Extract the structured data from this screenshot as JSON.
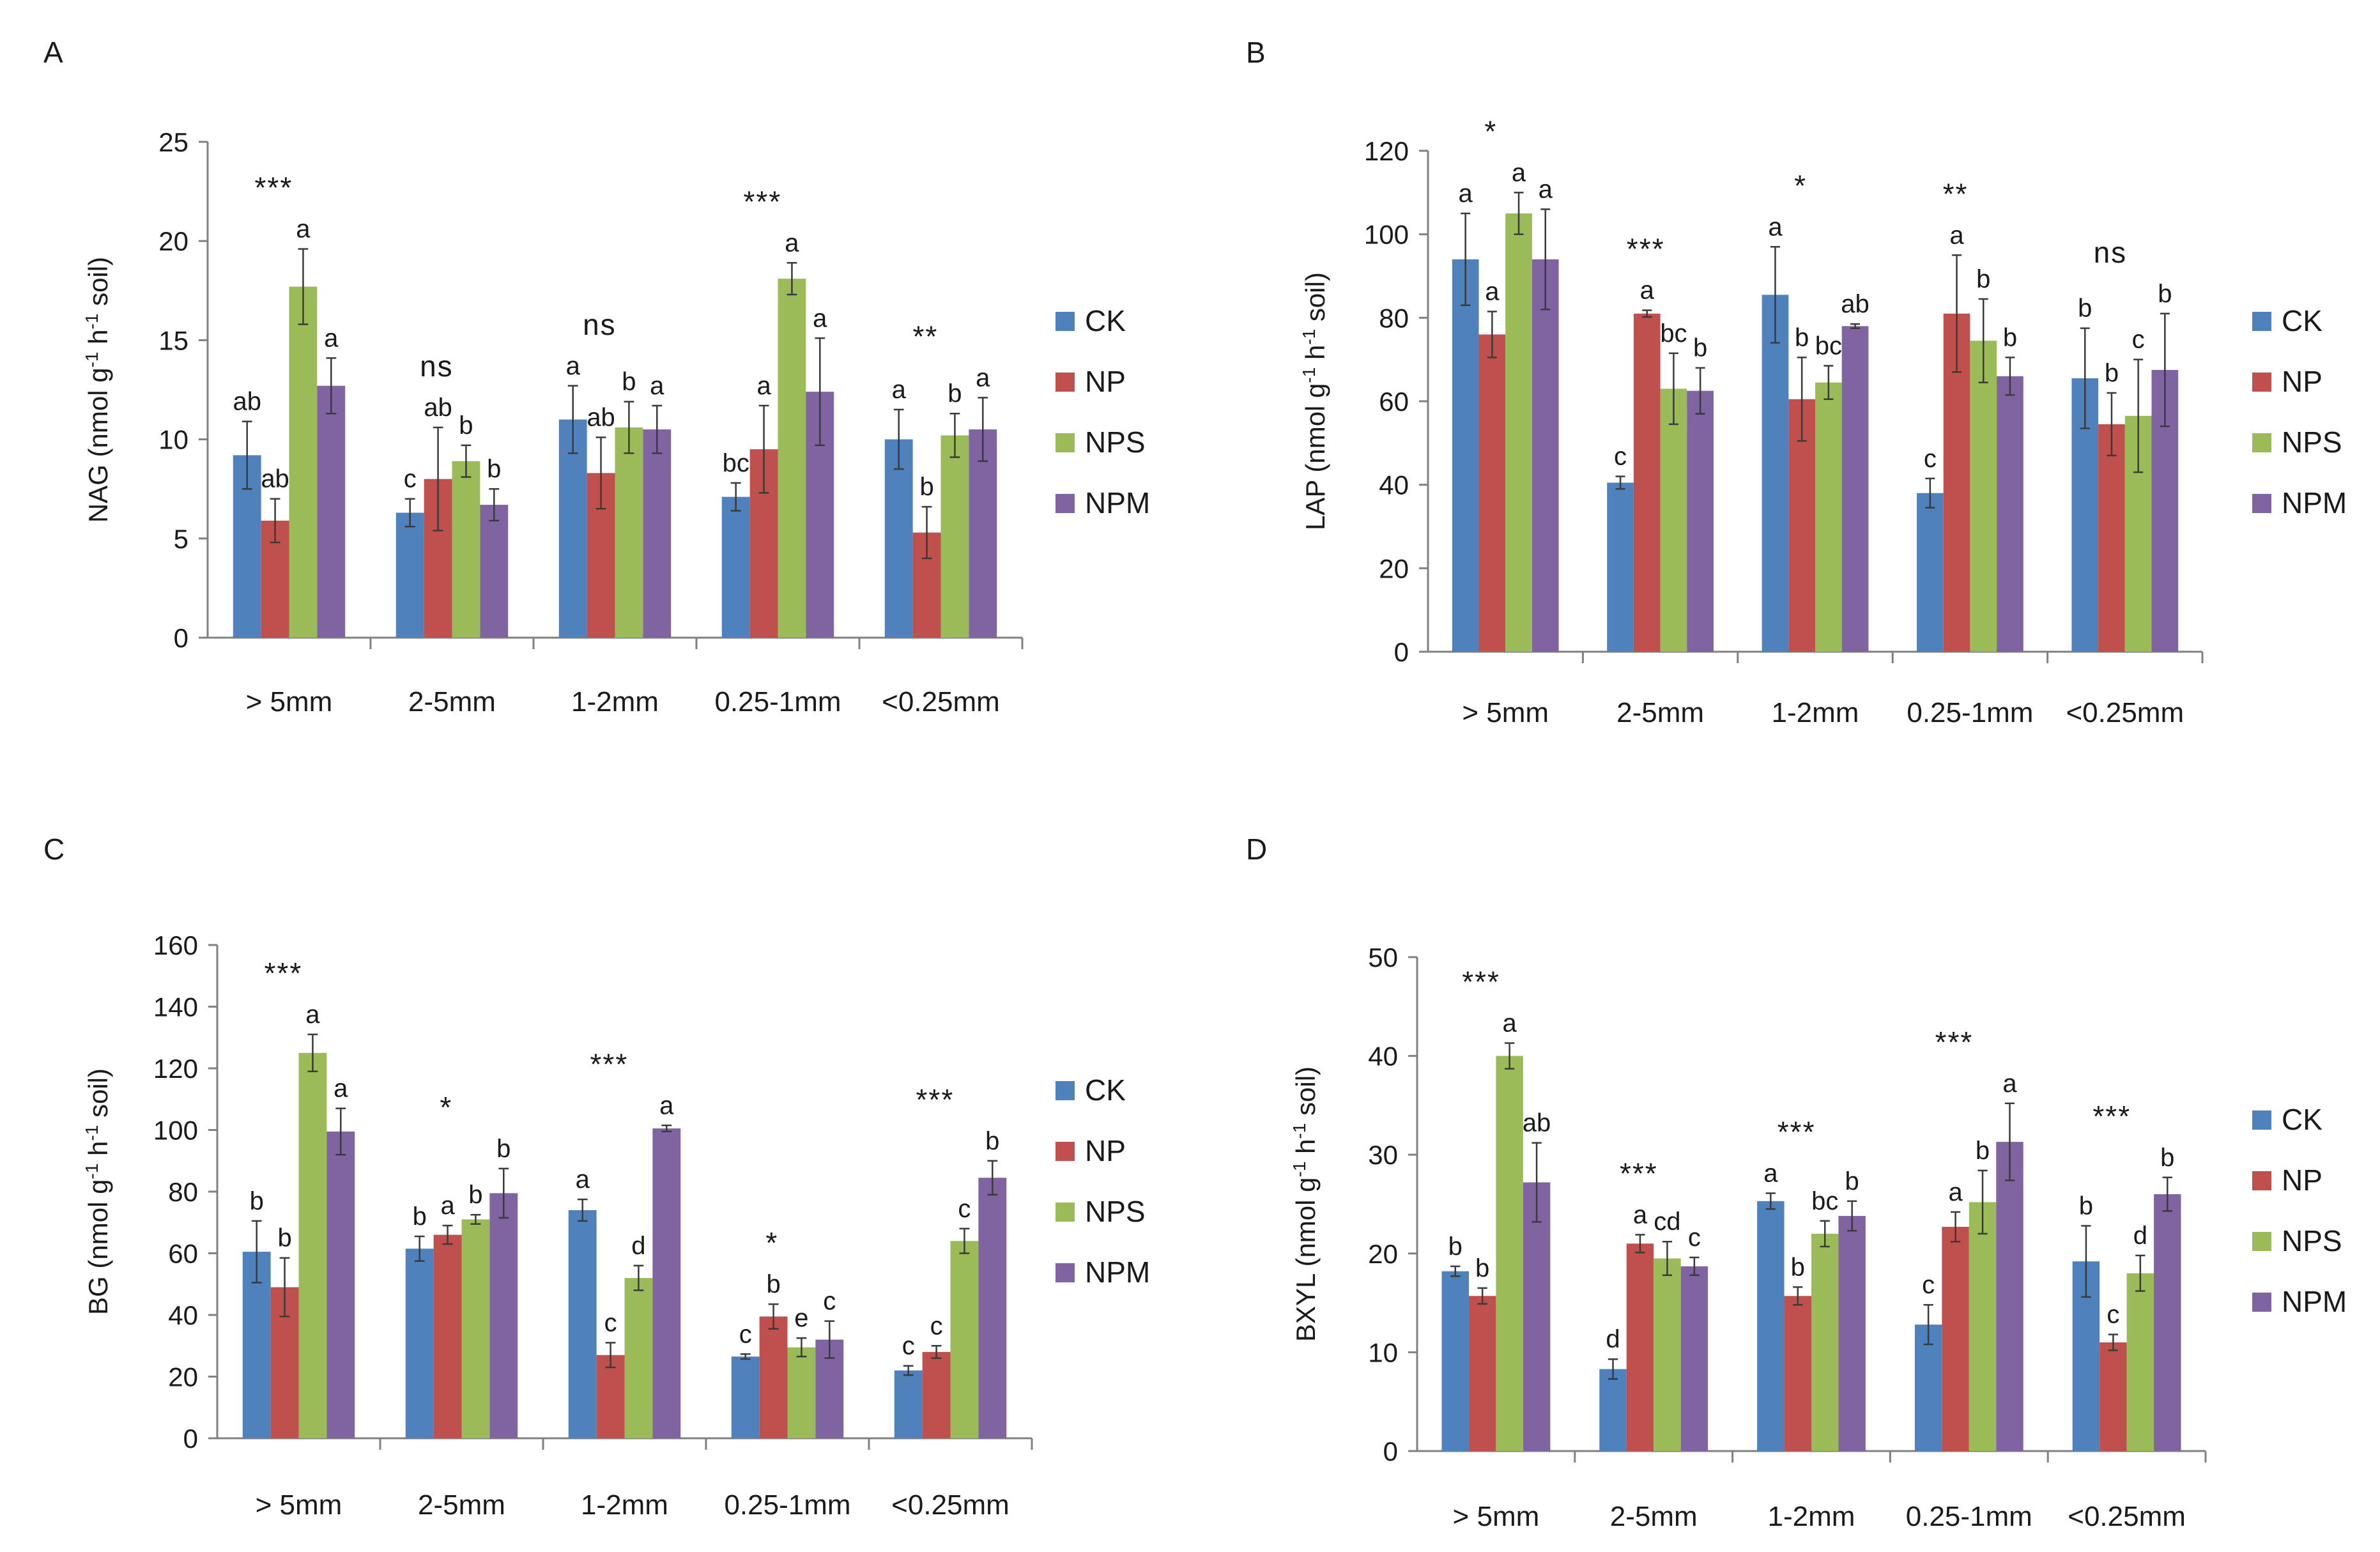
{
  "figure": {
    "series_colors": {
      "CK": "#4F81BD",
      "NP": "#C0504D",
      "NPS": "#9BBB59",
      "NPM": "#8064A2"
    },
    "axis_color": "#808080"
  },
  "chart_data": [
    {
      "id": "A",
      "type": "bar",
      "panel_label": "A",
      "ylabel": "NAG (nmol g-1 h-1 soil)",
      "ylabel_main": "NAG (nmol g",
      "ylabel_sup1": "-1",
      "ylabel_mid": " h",
      "ylabel_sup2": "-1",
      "ylabel_end": " soil)",
      "ylim": [
        0,
        25
      ],
      "yticks": [
        0,
        5,
        10,
        15,
        20,
        25
      ],
      "categories": [
        "> 5mm",
        "2-5mm",
        "1-2mm",
        "0.25-1mm",
        "<0.25mm"
      ],
      "significance": [
        "***",
        "ns",
        "ns",
        "***",
        "**"
      ],
      "series": [
        {
          "name": "CK",
          "values": [
            9.2,
            6.3,
            11.0,
            7.1,
            10.0
          ],
          "errors": [
            1.7,
            0.7,
            1.7,
            0.7,
            1.5
          ],
          "letters": [
            "ab",
            "c",
            "a",
            "bc",
            "a"
          ]
        },
        {
          "name": "NP",
          "values": [
            5.9,
            8.0,
            8.3,
            9.5,
            5.3
          ],
          "errors": [
            1.1,
            2.6,
            1.8,
            2.2,
            1.3
          ],
          "letters": [
            "ab",
            "ab",
            "ab",
            "a",
            "b"
          ]
        },
        {
          "name": "NPS",
          "values": [
            17.7,
            8.9,
            10.6,
            18.1,
            10.2
          ],
          "errors": [
            1.9,
            0.8,
            1.3,
            0.8,
            1.1
          ],
          "letters": [
            "a",
            "b",
            "b",
            "a",
            "b"
          ]
        },
        {
          "name": "NPM",
          "values": [
            12.7,
            6.7,
            10.5,
            12.4,
            10.5
          ],
          "errors": [
            1.4,
            0.8,
            1.2,
            2.7,
            1.6
          ],
          "letters": [
            "a",
            "b",
            "a",
            "a",
            "a"
          ]
        }
      ]
    },
    {
      "id": "B",
      "type": "bar",
      "panel_label": "B",
      "ylabel": "LAP (nmol g-1 h-1 soil)",
      "ylabel_main": "LAP (nmol g",
      "ylabel_sup1": "-1",
      "ylabel_mid": " h",
      "ylabel_sup2": "-1",
      "ylabel_end": " soil)",
      "ylim": [
        0,
        120
      ],
      "yticks": [
        0,
        20,
        40,
        60,
        80,
        100,
        120
      ],
      "categories": [
        "> 5mm",
        "2-5mm",
        "1-2mm",
        "0.25-1mm",
        "<0.25mm"
      ],
      "significance": [
        "*",
        "***",
        "*",
        "**",
        "ns"
      ],
      "series": [
        {
          "name": "CK",
          "values": [
            94,
            40.5,
            85.5,
            38,
            65.5
          ],
          "errors": [
            11,
            1.5,
            11.5,
            3.5,
            12
          ],
          "letters": [
            "a",
            "c",
            "a",
            "c",
            "b"
          ]
        },
        {
          "name": "NP",
          "values": [
            76,
            81,
            60.5,
            81,
            54.5
          ],
          "errors": [
            5.5,
            0.8,
            10,
            14,
            7.5
          ],
          "letters": [
            "a",
            "a",
            "b",
            "a",
            "b"
          ]
        },
        {
          "name": "NPS",
          "values": [
            105,
            63,
            64.5,
            74.5,
            56.5
          ],
          "errors": [
            5,
            8.5,
            4,
            10,
            13.5
          ],
          "letters": [
            "a",
            "bc",
            "bc",
            "b",
            "c"
          ]
        },
        {
          "name": "NPM",
          "values": [
            94,
            62.5,
            78,
            66,
            67.5
          ],
          "errors": [
            12,
            5.5,
            0.5,
            4.5,
            13.5
          ],
          "letters": [
            "a",
            "b",
            "ab",
            "b",
            "b"
          ]
        }
      ]
    },
    {
      "id": "C",
      "type": "bar",
      "panel_label": "C",
      "ylabel": "BG (nmol g-1 h-1 soil)",
      "ylabel_main": "BG (nmol g",
      "ylabel_sup1": "-1",
      "ylabel_mid": " h",
      "ylabel_sup2": "-1",
      "ylabel_end": " soil)",
      "ylim": [
        0,
        160
      ],
      "yticks": [
        0,
        20,
        40,
        60,
        80,
        100,
        120,
        140,
        160
      ],
      "categories": [
        "> 5mm",
        "2-5mm",
        "1-2mm",
        "0.25-1mm",
        "<0.25mm"
      ],
      "significance": [
        "***",
        "*",
        "***",
        "*",
        "***"
      ],
      "series": [
        {
          "name": "CK",
          "values": [
            60.5,
            61.5,
            74,
            26.5,
            22
          ],
          "errors": [
            10,
            4,
            3.5,
            0.8,
            1.5
          ],
          "letters": [
            "b",
            "b",
            "a",
            "c",
            "c"
          ]
        },
        {
          "name": "NP",
          "values": [
            49,
            66,
            27,
            39.5,
            28
          ],
          "errors": [
            9.5,
            3,
            4,
            4,
            2
          ],
          "letters": [
            "b",
            "a",
            "c",
            "b",
            "c"
          ]
        },
        {
          "name": "NPS",
          "values": [
            125,
            71,
            52,
            29.5,
            64
          ],
          "errors": [
            6,
            1.5,
            4,
            3,
            4
          ],
          "letters": [
            "a",
            "b",
            "d",
            "e",
            "c"
          ]
        },
        {
          "name": "NPM",
          "values": [
            99.5,
            79.5,
            100.5,
            32,
            84.5
          ],
          "errors": [
            7.5,
            8,
            1,
            6,
            5.5
          ],
          "letters": [
            "a",
            "b",
            "a",
            "c",
            "b"
          ]
        }
      ]
    },
    {
      "id": "D",
      "type": "bar",
      "panel_label": "D",
      "ylabel": "BXYL (nmol g-1 h-1 soil)",
      "ylabel_main": "BXYL (nmol g",
      "ylabel_sup1": "-1",
      "ylabel_mid": " h",
      "ylabel_sup2": "-1",
      "ylabel_end": " soil)",
      "ylim": [
        0,
        50
      ],
      "yticks": [
        0,
        10,
        20,
        30,
        40,
        50
      ],
      "categories": [
        "> 5mm",
        "2-5mm",
        "1-2mm",
        "0.25-1mm",
        "<0.25mm"
      ],
      "significance": [
        "***",
        "***",
        "***",
        "***",
        "***"
      ],
      "series": [
        {
          "name": "CK",
          "values": [
            18.2,
            8.3,
            25.3,
            12.8,
            19.2
          ],
          "errors": [
            0.5,
            1,
            0.8,
            2,
            3.6
          ],
          "letters": [
            "b",
            "d",
            "a",
            "c",
            "b"
          ]
        },
        {
          "name": "NP",
          "values": [
            15.7,
            21,
            15.7,
            22.7,
            11
          ],
          "errors": [
            0.8,
            0.9,
            0.9,
            1.5,
            0.8
          ],
          "letters": [
            "b",
            "a",
            "b",
            "a",
            "c"
          ]
        },
        {
          "name": "NPS",
          "values": [
            40,
            19.5,
            22,
            25.2,
            18
          ],
          "errors": [
            1.3,
            1.7,
            1.3,
            3.2,
            1.8
          ],
          "letters": [
            "a",
            "cd",
            "bc",
            "b",
            "d"
          ]
        },
        {
          "name": "NPM",
          "values": [
            27.2,
            18.7,
            23.8,
            31.3,
            26
          ],
          "errors": [
            4,
            0.9,
            1.5,
            3.9,
            1.7
          ],
          "letters": [
            "ab",
            "c",
            "b",
            "a",
            "b"
          ]
        }
      ]
    }
  ]
}
